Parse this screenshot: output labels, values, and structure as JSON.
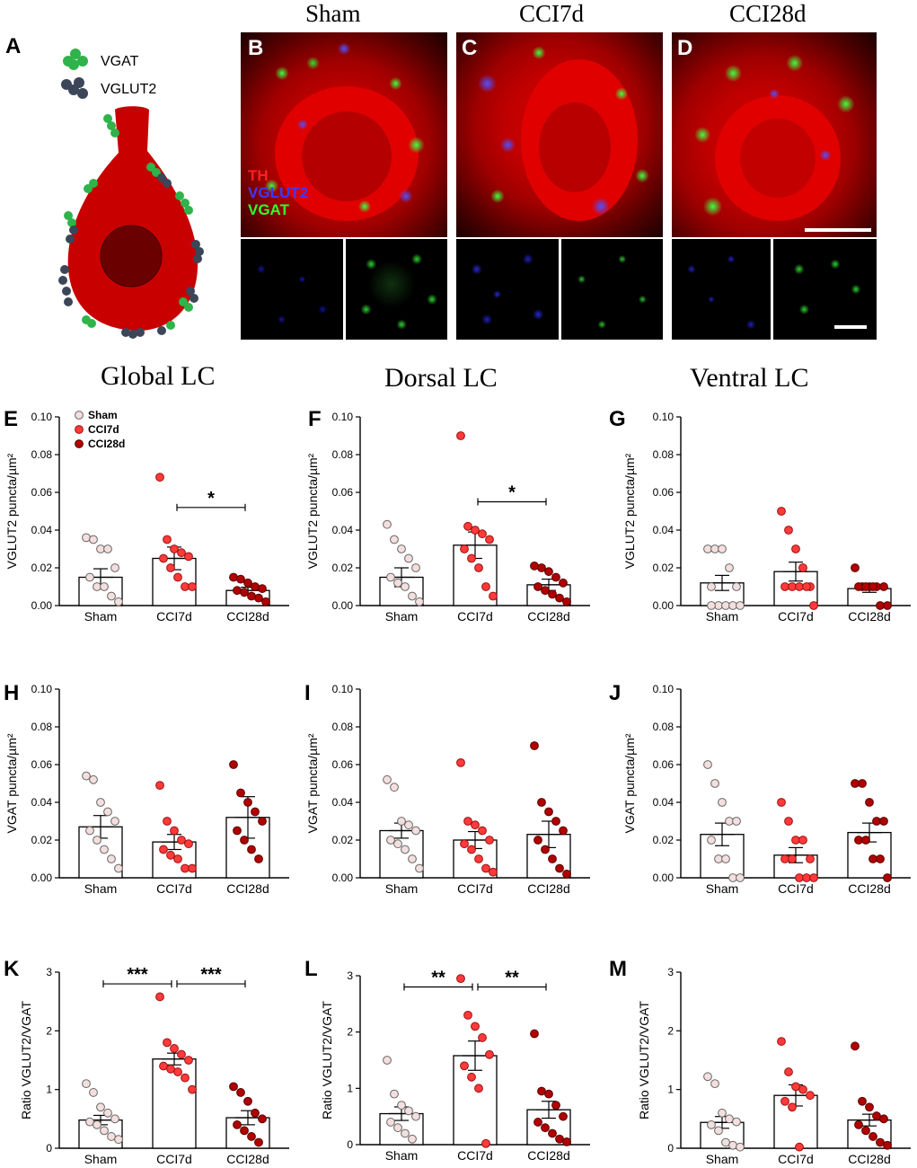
{
  "panel_letters": {
    "A": "A",
    "B": "B",
    "C": "C",
    "D": "D",
    "E": "E",
    "F": "F",
    "G": "G",
    "H": "H",
    "I": "I",
    "J": "J",
    "K": "K",
    "L": "L",
    "M": "M"
  },
  "schematic": {
    "legend": [
      {
        "label": "VGAT",
        "color": "#2fb34a"
      },
      {
        "label": "VGLUT2",
        "color": "#3c4658"
      }
    ],
    "cell_color": "#c80000",
    "nucleus_color": "#6b0000"
  },
  "micrographs": {
    "column_titles": [
      "Sham",
      "CCI7d",
      "CCI28d"
    ],
    "channel_legend": [
      {
        "label": "TH",
        "color": "#ff2020"
      },
      {
        "label": "VGLUT2",
        "color": "#3a3aff"
      },
      {
        "label": "VGAT",
        "color": "#30ff30"
      }
    ]
  },
  "group_titles": [
    "Global LC",
    "Dorsal LC",
    "Ventral LC"
  ],
  "legend": [
    {
      "label": "Sham",
      "color": "#f4dede"
    },
    {
      "label": "CCI7d",
      "color": "#ff3a3a"
    },
    {
      "label": "CCI28d",
      "color": "#b00000"
    }
  ],
  "chart_data": [
    {
      "id": "E",
      "type": "bar",
      "categories": [
        "Sham",
        "CCI7d",
        "CCI28d"
      ],
      "ylabel": "VGLUT2 puncta/µm²",
      "ylim": [
        0,
        0.1
      ],
      "yticks": [
        "0.00",
        "0.02",
        "0.04",
        "0.06",
        "0.08",
        "0.10"
      ],
      "means": [
        0.015,
        0.025,
        0.008
      ],
      "sem": [
        0.0045,
        0.006,
        0.0017
      ],
      "points": [
        [
          0.036,
          0.035,
          0.03,
          0.03,
          0.02,
          0.015,
          0.01,
          0.01,
          0.005,
          0.002
        ],
        [
          0.068,
          0.035,
          0.03,
          0.028,
          0.026,
          0.025,
          0.02,
          0.015,
          0.01,
          0.01
        ],
        [
          0.015,
          0.014,
          0.012,
          0.01,
          0.009,
          0.008,
          0.007,
          0.005,
          0.004,
          0.002
        ]
      ],
      "brackets": [
        {
          "from": 1,
          "to": 2,
          "label": "*",
          "y": 0.052
        }
      ]
    },
    {
      "id": "F",
      "type": "bar",
      "categories": [
        "Sham",
        "CCI7d",
        "CCI28d"
      ],
      "ylabel": "VGLUT2 puncta/µm²",
      "ylim": [
        0,
        0.1
      ],
      "yticks": [
        "0.00",
        "0.02",
        "0.04",
        "0.06",
        "0.08",
        "0.10"
      ],
      "means": [
        0.015,
        0.032,
        0.011
      ],
      "sem": [
        0.005,
        0.007,
        0.003
      ],
      "points": [
        [
          0.043,
          0.035,
          0.03,
          0.025,
          0.02,
          0.015,
          0.012,
          0.01,
          0.005,
          0.002
        ],
        [
          0.09,
          0.042,
          0.04,
          0.038,
          0.035,
          0.03,
          0.025,
          0.02,
          0.01,
          0.005
        ],
        [
          0.021,
          0.02,
          0.018,
          0.015,
          0.012,
          0.01,
          0.008,
          0.006,
          0.004,
          0.002
        ]
      ],
      "brackets": [
        {
          "from": 1,
          "to": 2,
          "label": "*",
          "y": 0.055
        }
      ]
    },
    {
      "id": "G",
      "type": "bar",
      "categories": [
        "Sham",
        "CCI7d",
        "CCI28d"
      ],
      "ylabel": "VGLUT2 puncta/µm²",
      "ylim": [
        0,
        0.1
      ],
      "yticks": [
        "0.00",
        "0.02",
        "0.04",
        "0.06",
        "0.08",
        "0.10"
      ],
      "means": [
        0.012,
        0.018,
        0.009
      ],
      "sem": [
        0.004,
        0.005,
        0.002
      ],
      "points": [
        [
          0.03,
          0.03,
          0.03,
          0.02,
          0.01,
          0.01,
          0.0,
          0.0,
          0.0,
          0.0,
          0.0
        ],
        [
          0.05,
          0.04,
          0.03,
          0.02,
          0.01,
          0.01,
          0.01,
          0.01,
          0.01,
          0.0
        ],
        [
          0.02,
          0.01,
          0.01,
          0.01,
          0.01,
          0.01,
          0.01,
          0.01,
          0.0,
          0.0
        ]
      ],
      "brackets": []
    },
    {
      "id": "H",
      "type": "bar",
      "categories": [
        "Sham",
        "CCI7d",
        "CCI28d"
      ],
      "ylabel": "VGAT puncta/µm²",
      "ylim": [
        0,
        0.1
      ],
      "yticks": [
        "0.00",
        "0.02",
        "0.04",
        "0.06",
        "0.08",
        "0.10"
      ],
      "means": [
        0.027,
        0.019,
        0.032
      ],
      "sem": [
        0.006,
        0.004,
        0.011
      ],
      "points": [
        [
          0.054,
          0.052,
          0.04,
          0.035,
          0.03,
          0.025,
          0.02,
          0.015,
          0.01,
          0.005
        ],
        [
          0.049,
          0.03,
          0.025,
          0.02,
          0.018,
          0.015,
          0.012,
          0.01,
          0.005,
          0.005
        ],
        [
          0.06,
          0.045,
          0.04,
          0.035,
          0.03,
          0.025,
          0.02,
          0.015,
          0.01
        ]
      ],
      "brackets": []
    },
    {
      "id": "I",
      "type": "bar",
      "categories": [
        "Sham",
        "CCI7d",
        "CCI28d"
      ],
      "ylabel": "VGAT puncta/µm²",
      "ylim": [
        0,
        0.1
      ],
      "yticks": [
        "0.00",
        "0.02",
        "0.04",
        "0.06",
        "0.08",
        "0.10"
      ],
      "means": [
        0.025,
        0.02,
        0.023
      ],
      "sem": [
        0.004,
        0.0045,
        0.007
      ],
      "points": [
        [
          0.052,
          0.048,
          0.03,
          0.028,
          0.025,
          0.02,
          0.018,
          0.015,
          0.01,
          0.005
        ],
        [
          0.061,
          0.03,
          0.028,
          0.025,
          0.02,
          0.018,
          0.015,
          0.01,
          0.005,
          0.003
        ],
        [
          0.07,
          0.04,
          0.035,
          0.03,
          0.025,
          0.02,
          0.015,
          0.01,
          0.005,
          0.002
        ]
      ],
      "brackets": []
    },
    {
      "id": "J",
      "type": "bar",
      "categories": [
        "Sham",
        "CCI7d",
        "CCI28d"
      ],
      "ylabel": "VGAT puncta/µm²",
      "ylim": [
        0,
        0.1
      ],
      "yticks": [
        "0.00",
        "0.02",
        "0.04",
        "0.06",
        "0.08",
        "0.10"
      ],
      "means": [
        0.023,
        0.012,
        0.024
      ],
      "sem": [
        0.006,
        0.004,
        0.005
      ],
      "points": [
        [
          0.06,
          0.05,
          0.04,
          0.03,
          0.03,
          0.02,
          0.01,
          0.01,
          0.0,
          0.0
        ],
        [
          0.04,
          0.03,
          0.02,
          0.02,
          0.01,
          0.01,
          0.01,
          0.0,
          0.0,
          0.0
        ],
        [
          0.05,
          0.05,
          0.04,
          0.03,
          0.03,
          0.02,
          0.02,
          0.01,
          0.01,
          0.0
        ]
      ],
      "brackets": []
    },
    {
      "id": "K",
      "type": "bar",
      "categories": [
        "Sham",
        "CCI7d",
        "CCI28d"
      ],
      "ylabel": "Ratio VGLUT2/VGAT",
      "ylim": [
        0,
        3
      ],
      "yticks": [
        "0",
        "1",
        "2",
        "3"
      ],
      "means": [
        0.48,
        1.52,
        0.52
      ],
      "sem": [
        0.08,
        0.1,
        0.12
      ],
      "points": [
        [
          1.1,
          0.95,
          0.7,
          0.6,
          0.5,
          0.45,
          0.4,
          0.3,
          0.2,
          0.15
        ],
        [
          2.58,
          1.8,
          1.7,
          1.6,
          1.5,
          1.4,
          1.35,
          1.3,
          1.2,
          1.0
        ],
        [
          1.05,
          0.95,
          0.8,
          0.6,
          0.5,
          0.4,
          0.3,
          0.2,
          0.1
        ]
      ],
      "brackets": [
        {
          "from": 0,
          "to": 1,
          "label": "***",
          "y": 2.8
        },
        {
          "from": 1,
          "to": 2,
          "label": "***",
          "y": 2.8
        }
      ]
    },
    {
      "id": "L",
      "type": "bar",
      "categories": [
        "Sham",
        "CCI7d",
        "CCI28d"
      ],
      "ylabel": "Ratio VGLUT2/VGAT",
      "ylim": [
        0,
        3
      ],
      "yticks": [
        "0",
        "1",
        "2",
        "3"
      ],
      "means": [
        0.55,
        1.58,
        0.62
      ],
      "sem": [
        0.12,
        0.26,
        0.15
      ],
      "points": [
        [
          1.5,
          0.9,
          0.7,
          0.6,
          0.5,
          0.4,
          0.3,
          0.2,
          0.1
        ],
        [
          2.95,
          2.3,
          2.1,
          1.9,
          1.6,
          1.4,
          1.2,
          1.0,
          0.02
        ],
        [
          1.97,
          0.95,
          0.9,
          0.7,
          0.5,
          0.4,
          0.3,
          0.2,
          0.1,
          0.05
        ]
      ],
      "brackets": [
        {
          "from": 0,
          "to": 1,
          "label": "**",
          "y": 2.8
        },
        {
          "from": 1,
          "to": 2,
          "label": "**",
          "y": 2.8
        }
      ]
    },
    {
      "id": "M",
      "type": "bar",
      "categories": [
        "Sham",
        "CCI7d",
        "CCI28d"
      ],
      "ylabel": "Ratio VGLUT2/VGAT",
      "ylim": [
        0,
        3
      ],
      "yticks": [
        "0",
        "1",
        "2",
        "3"
      ],
      "means": [
        0.44,
        0.9,
        0.48
      ],
      "sem": [
        0.1,
        0.18,
        0.1
      ],
      "points": [
        [
          1.22,
          1.1,
          0.6,
          0.5,
          0.45,
          0.4,
          0.3,
          0.1,
          0.05,
          0.02
        ],
        [
          1.82,
          1.3,
          1.05,
          1.0,
          0.9,
          0.8,
          0.7,
          0.02
        ],
        [
          1.74,
          0.8,
          0.7,
          0.55,
          0.5,
          0.4,
          0.3,
          0.2,
          0.1,
          0.05
        ]
      ],
      "brackets": []
    }
  ]
}
